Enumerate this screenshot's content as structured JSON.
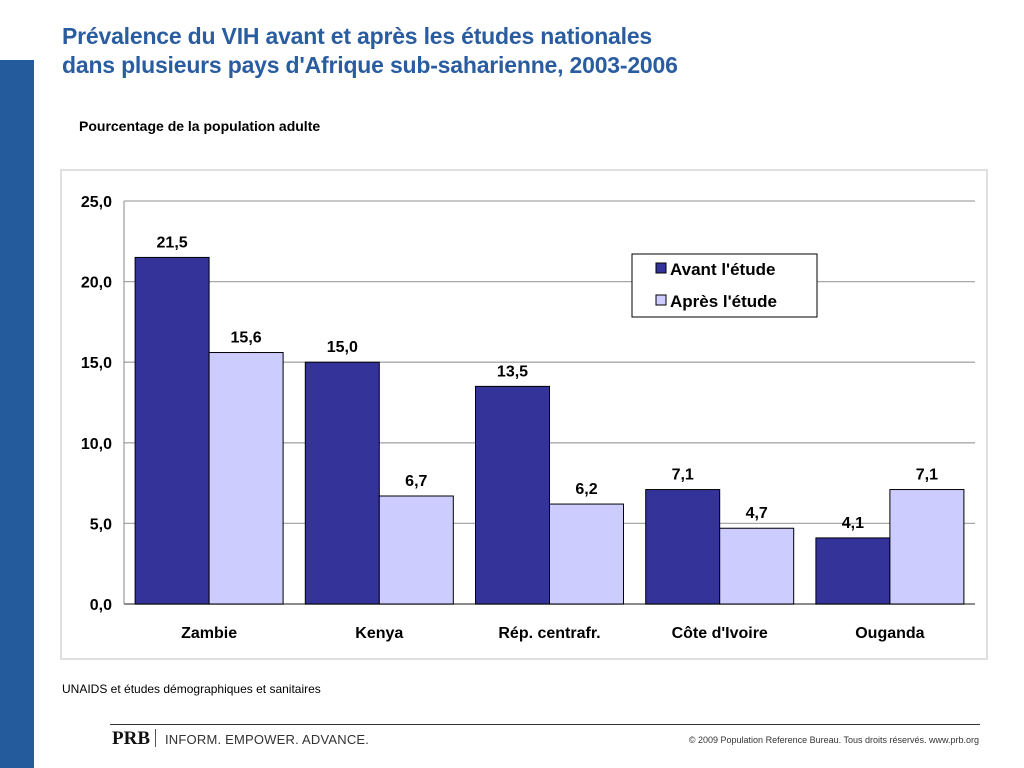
{
  "slide": {
    "title_line1": "Prévalence du VIH avant et après les études nationales",
    "title_line2": "dans plusieurs pays d'Afrique sub-saharienne, 2003-2006",
    "subtitle": "Pourcentage de la population adulte",
    "source": "UNAIDS et études démographiques et sanitaires",
    "footer": {
      "logo": "PRB",
      "tagline": "INFORM. EMPOWER. ADVANCE.",
      "copyright": "© 2009 Population Reference Bureau. Tous droits réservés. www.prb.org"
    },
    "colors": {
      "accent": "#245b9c",
      "title": "#2a5da0"
    }
  },
  "chart_data": {
    "type": "bar",
    "title": "Prévalence du VIH avant et après les études nationales dans plusieurs pays d'Afrique sub-saharienne, 2003-2006",
    "ylabel": "Pourcentage de la population adulte",
    "xlabel": "",
    "categories": [
      "Zambie",
      "Kenya",
      "Rép. centrafr.",
      "Côte d'Ivoire",
      "Ouganda"
    ],
    "series": [
      {
        "name": "Avant l'étude",
        "color": "#333399",
        "values": [
          21.5,
          15.0,
          13.5,
          7.1,
          4.1
        ],
        "labels": [
          "21,5",
          "15,0",
          "13,5",
          "7,1",
          "4,1"
        ]
      },
      {
        "name": "Après l'étude",
        "color": "#ccccff",
        "values": [
          15.6,
          6.7,
          6.2,
          4.7,
          7.1
        ],
        "labels": [
          "15,6",
          "6,7",
          "6,2",
          "4,7",
          "7,1"
        ]
      }
    ],
    "ylim": [
      0,
      25
    ],
    "yticks": [
      0,
      5,
      10,
      15,
      20,
      25
    ],
    "ytick_labels": [
      "0,0",
      "5,0",
      "10,0",
      "15,0",
      "20,0",
      "25,0"
    ],
    "grid": true,
    "legend": "top-right"
  }
}
